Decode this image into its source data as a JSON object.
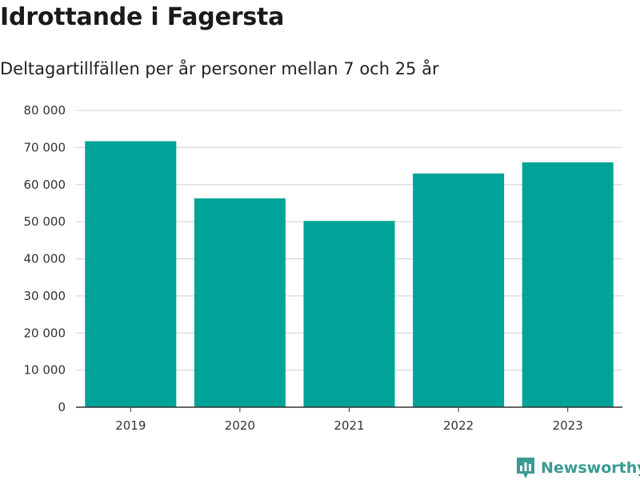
{
  "chart_data": {
    "type": "bar",
    "title": "Idrottande i Fagersta",
    "subtitle": "Deltagartillfällen per år personer mellan 7 och 25 år",
    "categories": [
      "2019",
      "2020",
      "2021",
      "2022",
      "2023"
    ],
    "values": [
      71700,
      56300,
      50200,
      63000,
      66000
    ],
    "ylim": [
      0,
      80000
    ],
    "yticks": [
      0,
      10000,
      20000,
      30000,
      40000,
      50000,
      60000,
      70000,
      80000
    ],
    "ytick_labels": [
      "0",
      "10 000",
      "20 000",
      "30 000",
      "40 000",
      "50 000",
      "60 000",
      "70 000",
      "80 000"
    ],
    "grid": true,
    "bar_color": "#00a398"
  },
  "brand": {
    "name": "Newsworthy",
    "icon": "newsworthy-logo-icon",
    "color": "#3a9b93"
  }
}
